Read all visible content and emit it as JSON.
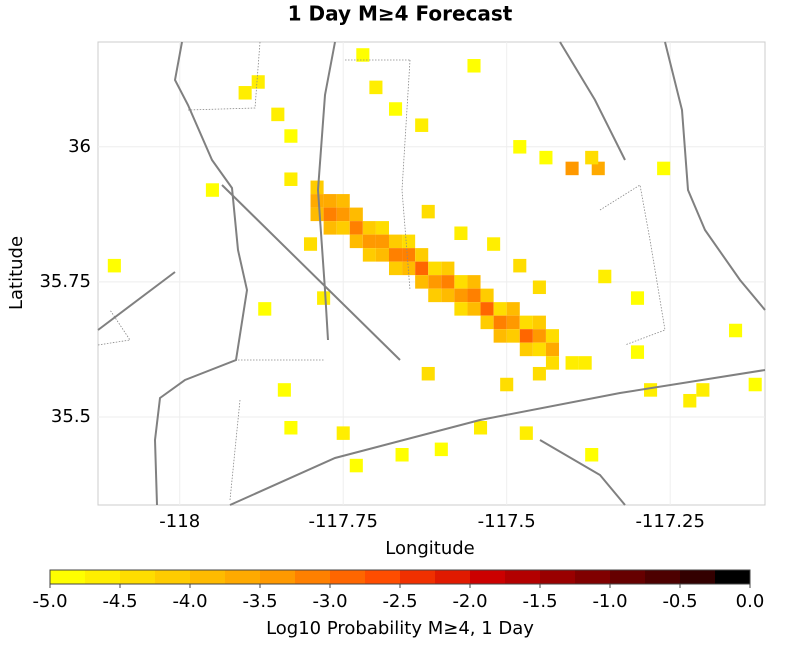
{
  "chart_data": {
    "type": "heatmap",
    "title": "1 Day M≥4 Forecast",
    "xlabel": "Longitude",
    "ylabel": "Latitude",
    "xlim": [
      -118.125,
      -117.105
    ],
    "ylim": [
      35.337,
      36.194
    ],
    "xticks": [
      -118,
      -117.75,
      -117.5,
      -117.25
    ],
    "yticks": [
      36,
      35.75,
      35.5
    ],
    "grid": true,
    "x": [
      -117.79,
      -117.79,
      -117.79,
      -117.77,
      -117.77,
      -117.77,
      -117.75,
      -117.75,
      -117.75,
      -117.73,
      -117.73,
      -117.73,
      -117.71,
      -117.71,
      -117.71,
      -117.69,
      -117.69,
      -117.69,
      -117.67,
      -117.67,
      -117.67,
      -117.65,
      -117.65,
      -117.65,
      -117.63,
      -117.63,
      -117.63,
      -117.61,
      -117.61,
      -117.61,
      -117.59,
      -117.59,
      -117.59,
      -117.57,
      -117.57,
      -117.57,
      -117.55,
      -117.55,
      -117.55,
      -117.53,
      -117.53,
      -117.53,
      -117.51,
      -117.51,
      -117.51,
      -117.49,
      -117.49,
      -117.49,
      -117.47,
      -117.47,
      -117.47,
      -117.45,
      -117.45,
      -117.45,
      -117.43,
      -117.43,
      -117.43,
      -118.1,
      -117.88,
      -117.9,
      -117.85,
      -117.83,
      -117.72,
      -117.7,
      -117.67,
      -117.63,
      -117.55,
      -117.48,
      -117.44,
      -117.4,
      -117.36,
      -117.37,
      -117.26,
      -117.35,
      -117.3,
      -117.15,
      -117.3,
      -117.38,
      -117.28,
      -117.22,
      -117.84,
      -117.83,
      -117.75,
      -117.73,
      -117.66,
      -117.6,
      -117.54,
      -117.47,
      -117.37,
      -117.78,
      -117.87,
      -117.62,
      -117.5,
      -117.45,
      -117.4,
      -117.2,
      -117.12,
      -117.95,
      -117.83,
      -117.8,
      -117.62,
      -117.57,
      -117.52,
      -117.48,
      -117.45
    ],
    "y": [
      35.925,
      35.9,
      35.875,
      35.9,
      35.875,
      35.85,
      35.9,
      35.875,
      35.85,
      35.875,
      35.85,
      35.825,
      35.85,
      35.825,
      35.8,
      35.85,
      35.825,
      35.8,
      35.825,
      35.8,
      35.775,
      35.825,
      35.8,
      35.775,
      35.8,
      35.775,
      35.75,
      35.775,
      35.75,
      35.725,
      35.775,
      35.75,
      35.725,
      35.75,
      35.725,
      35.7,
      35.75,
      35.725,
      35.7,
      35.725,
      35.7,
      35.675,
      35.7,
      35.675,
      35.65,
      35.7,
      35.675,
      35.65,
      35.675,
      35.65,
      35.625,
      35.675,
      35.65,
      35.625,
      35.65,
      35.625,
      35.6,
      35.78,
      36.12,
      36.1,
      36.06,
      36.02,
      36.17,
      36.11,
      36.07,
      36.04,
      36.15,
      36.0,
      35.98,
      35.96,
      35.96,
      35.98,
      35.96,
      35.76,
      35.72,
      35.66,
      35.62,
      35.6,
      35.55,
      35.53,
      35.55,
      35.48,
      35.47,
      35.41,
      35.43,
      35.44,
      35.48,
      35.47,
      35.43,
      35.72,
      35.7,
      35.58,
      35.56,
      35.58,
      35.6,
      35.55,
      35.56,
      35.92,
      35.94,
      35.82,
      35.88,
      35.84,
      35.82,
      35.78,
      35.74
    ],
    "values": [
      -4.25,
      -3.75,
      -4.0,
      -3.75,
      -3.25,
      -4.0,
      -4.0,
      -3.5,
      -4.25,
      -4.0,
      -3.25,
      -4.0,
      -4.25,
      -3.5,
      -4.25,
      -4.5,
      -3.5,
      -4.0,
      -4.25,
      -3.25,
      -4.25,
      -4.5,
      -3.25,
      -4.0,
      -4.25,
      -3.0,
      -4.0,
      -4.5,
      -3.5,
      -4.25,
      -4.25,
      -3.25,
      -4.0,
      -4.5,
      -3.5,
      -4.5,
      -4.0,
      -3.25,
      -4.0,
      -4.25,
      -3.0,
      -4.25,
      -4.5,
      -3.25,
      -4.0,
      -4.0,
      -3.5,
      -4.25,
      -4.5,
      -3.0,
      -4.25,
      -4.25,
      -3.5,
      -4.5,
      -4.5,
      -3.75,
      -4.5,
      -5.0,
      -4.75,
      -4.75,
      -4.75,
      -5.0,
      -5.0,
      -4.75,
      -5.0,
      -4.75,
      -5.0,
      -5.0,
      -5.0,
      -3.5,
      -3.75,
      -4.5,
      -5.0,
      -4.75,
      -5.0,
      -5.0,
      -5.0,
      -4.75,
      -4.75,
      -4.75,
      -5.0,
      -5.0,
      -4.75,
      -5.0,
      -5.0,
      -5.0,
      -4.75,
      -4.75,
      -5.0,
      -4.75,
      -5.0,
      -4.5,
      -4.5,
      -4.5,
      -4.75,
      -4.75,
      -5.0,
      -5.0,
      -4.75,
      -4.5,
      -4.5,
      -4.75,
      -4.75,
      -4.5,
      -4.5
    ],
    "colorbar": {
      "label": "Log10 Probability M≥4, 1 Day",
      "lim": [
        -5,
        0
      ],
      "ticks": [
        {
          "value": -5,
          "label": "-5.0"
        },
        {
          "value": -4.5,
          "label": "-4.5"
        },
        {
          "value": -4,
          "label": "-4.0"
        },
        {
          "value": -3.5,
          "label": "-3.5"
        },
        {
          "value": -3,
          "label": "-3.0"
        },
        {
          "value": -2.5,
          "label": "-2.5"
        },
        {
          "value": -2,
          "label": "-2.0"
        },
        {
          "value": -1.5,
          "label": "-1.5"
        },
        {
          "value": -1,
          "label": "-1.0"
        },
        {
          "value": -0.5,
          "label": "-0.5"
        },
        {
          "value": 0,
          "label": "0.0"
        }
      ],
      "colors": [
        "#ffff00",
        "#ffee00",
        "#ffdd00",
        "#ffcc00",
        "#ffbb00",
        "#ffaa00",
        "#ff9900",
        "#ff8000",
        "#ff6600",
        "#ff4d00",
        "#f03000",
        "#e01a00",
        "#cc0000",
        "#b30000",
        "#990000",
        "#800000",
        "#660000",
        "#4d0000",
        "#330000",
        "#000000"
      ]
    }
  }
}
